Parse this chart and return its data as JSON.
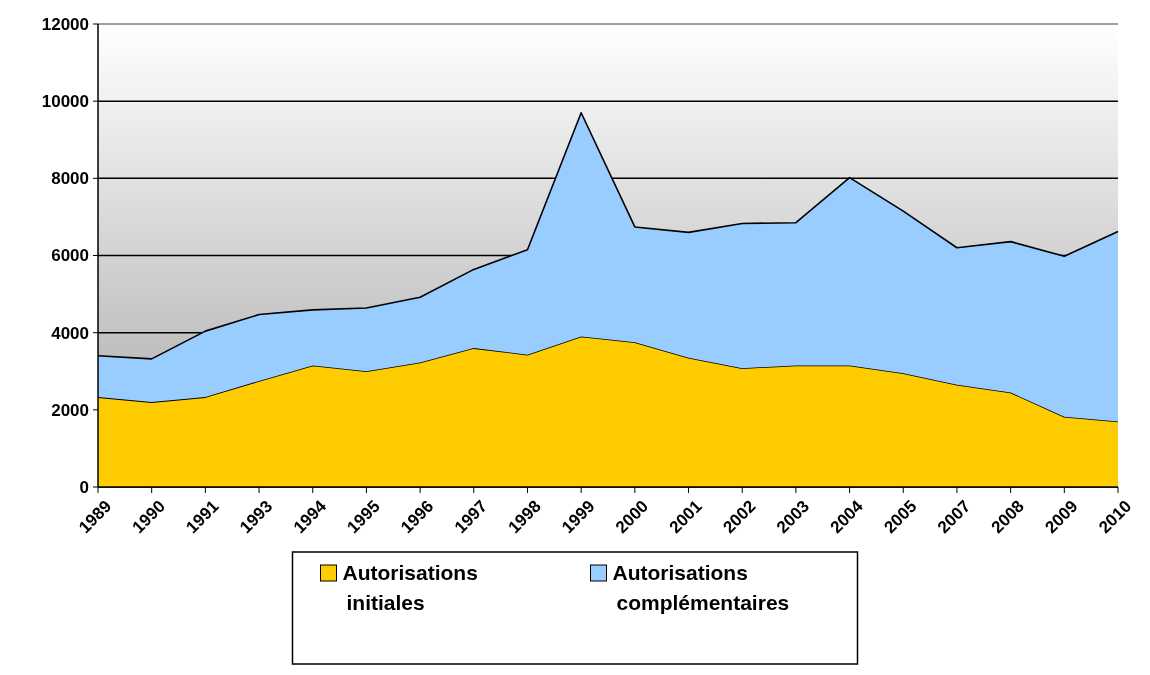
{
  "chart_data": {
    "type": "area",
    "stacked": true,
    "categories": [
      "1989",
      "1990",
      "1991",
      "1993",
      "1994",
      "1995",
      "1996",
      "1997",
      "1998",
      "1999",
      "2000",
      "2001",
      "2002",
      "2003",
      "2004",
      "2005",
      "2007",
      "2008",
      "2009",
      "2010"
    ],
    "series": [
      {
        "name": "Autorisations initiales",
        "color": "#ffcc00",
        "values": [
          2330,
          2200,
          2330,
          2750,
          3150,
          3000,
          3230,
          3600,
          3430,
          3900,
          3750,
          3350,
          3080,
          3150,
          3150,
          2950,
          2650,
          2450,
          1820,
          1700
        ]
      },
      {
        "name": "Autorisations complémentaires",
        "color": "#99ccff",
        "values": [
          1070,
          1120,
          1710,
          1720,
          1440,
          1640,
          1690,
          2040,
          2720,
          5800,
          2990,
          3250,
          3750,
          3700,
          4870,
          4200,
          3550,
          3910,
          4160,
          4920
        ]
      }
    ],
    "ylim": [
      0,
      12000
    ],
    "yticks": [
      0,
      2000,
      4000,
      6000,
      8000,
      10000,
      12000
    ],
    "grid": "y",
    "legend": "bottom"
  }
}
